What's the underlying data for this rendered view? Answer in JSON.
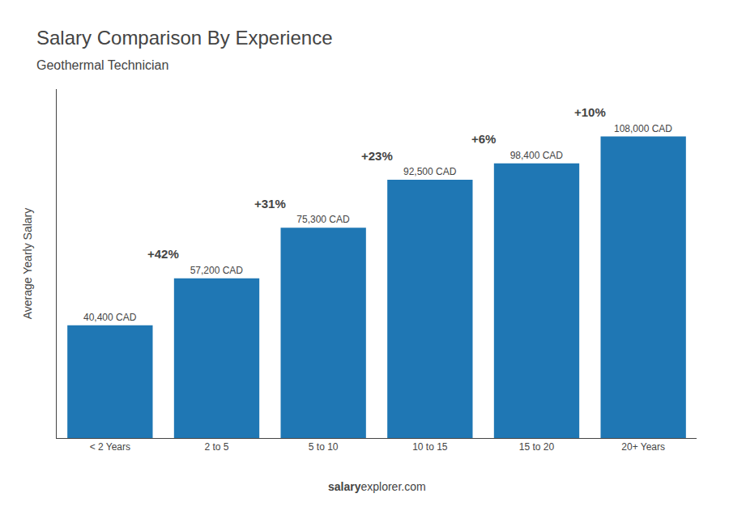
{
  "chart_data": {
    "type": "bar",
    "title": "Salary Comparison By Experience",
    "subtitle": "Geothermal Technician",
    "categories": [
      "< 2 Years",
      "2 to 5",
      "5 to 10",
      "10 to 15",
      "15 to 20",
      "20+ Years"
    ],
    "values": [
      40400,
      57200,
      75300,
      92500,
      98400,
      108000
    ],
    "value_labels": [
      "40,400 CAD",
      "57,200 CAD",
      "75,300 CAD",
      "92,500 CAD",
      "98,400 CAD",
      "108,000 CAD"
    ],
    "data_labels": true,
    "annotations": [
      "+42%",
      "+31%",
      "+23%",
      "+6%",
      "+10%"
    ],
    "ylabel": "Average Yearly Salary",
    "footer": [
      "salary",
      "explorer.com"
    ],
    "ylim": [
      0,
      125000
    ],
    "tick_labels": "x",
    "grid": false
  }
}
